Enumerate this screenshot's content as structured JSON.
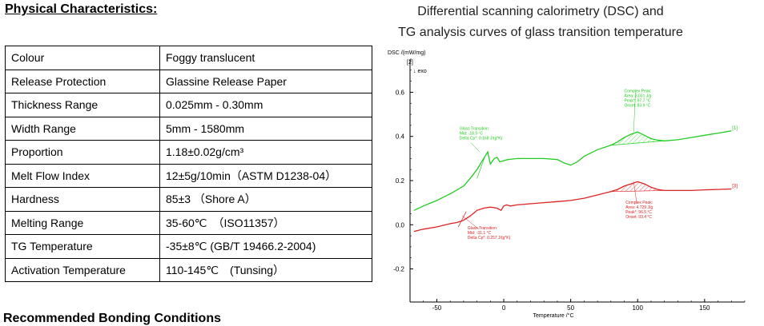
{
  "heading": "Physical Characteristics:",
  "next_heading": "Recommended Bonding Conditions",
  "properties": [
    {
      "name": "Colour",
      "value": "Foggy translucent"
    },
    {
      "name": "Release Protection",
      "value": "Glassine Release Paper"
    },
    {
      "name": "Thickness Range",
      "value": "0.025mm - 0.30mm"
    },
    {
      "name": "Width Range",
      "value": "5mm - 1580mm"
    },
    {
      "name": "Proportion",
      "value": "1.18±0.02g/cm³"
    },
    {
      "name": "Melt Flow Index",
      "value": "12±5g/10min（ASTM D1238-04）"
    },
    {
      "name": "Hardness",
      "value": "85±3 （Shore A）"
    },
    {
      "name": "Melting Range",
      "value": "35-60℃　（ISO11357）"
    },
    {
      "name": "TG Temperature",
      "value": "-35±8℃ (GB/T 19466.2-2004)"
    },
    {
      "name": "Activation Temperature",
      "value": "110-145℃　(Tunsing）"
    }
  ],
  "chart_title_line1": "Differential scanning calorimetry (DSC) and",
  "chart_title_line2": "TG analysis curves of glass transition temperature",
  "chart_data": {
    "type": "line",
    "ylabel": "DSC /(mW/mg)",
    "xlabel": "Temperature /°C",
    "exo_label": "↓ exo",
    "exo_bracket": "[2]",
    "xlim": [
      -70,
      180
    ],
    "ylim": [
      -0.35,
      0.75
    ],
    "xticks": [
      -50,
      0,
      50,
      100,
      150
    ],
    "yticks": [
      -0.2,
      0.0,
      0.2,
      0.4,
      0.6
    ],
    "ytick_labels": [
      "-0.2",
      "0.0",
      "0.2",
      "0.4",
      "0.6"
    ],
    "series": [
      {
        "name": "[1]",
        "color": "#22cc22",
        "x": [
          -67,
          -60,
          -50,
          -40,
          -30,
          -25,
          -20,
          -16,
          -12,
          -10,
          -7,
          -5,
          -3,
          0,
          3,
          10,
          20,
          30,
          40,
          45,
          50,
          55,
          60,
          70,
          80,
          85,
          90,
          95,
          100,
          105,
          110,
          115,
          120,
          130,
          140,
          150,
          160,
          170
        ],
        "y": [
          0.065,
          0.085,
          0.11,
          0.14,
          0.175,
          0.21,
          0.25,
          0.29,
          0.33,
          0.275,
          0.3,
          0.305,
          0.285,
          0.29,
          0.295,
          0.3,
          0.3,
          0.3,
          0.295,
          0.28,
          0.27,
          0.285,
          0.31,
          0.34,
          0.36,
          0.375,
          0.395,
          0.41,
          0.42,
          0.405,
          0.39,
          0.383,
          0.38,
          0.385,
          0.395,
          0.405,
          0.415,
          0.425
        ]
      },
      {
        "name": "[3]",
        "color": "#dd2222",
        "x": [
          -67,
          -60,
          -50,
          -40,
          -35,
          -30,
          -25,
          -22,
          -20,
          -15,
          -10,
          -5,
          -2,
          0,
          2,
          5,
          10,
          20,
          30,
          40,
          50,
          60,
          70,
          80,
          85,
          90,
          95,
          100,
          105,
          110,
          115,
          120,
          130,
          140,
          150,
          160,
          170
        ],
        "y": [
          -0.03,
          -0.02,
          -0.01,
          0.005,
          0.01,
          0.02,
          0.04,
          0.055,
          0.065,
          0.075,
          0.08,
          0.075,
          0.065,
          0.085,
          0.09,
          0.085,
          0.09,
          0.095,
          0.1,
          0.105,
          0.11,
          0.12,
          0.135,
          0.15,
          0.16,
          0.175,
          0.185,
          0.195,
          0.185,
          0.17,
          0.16,
          0.155,
          0.155,
          0.155,
          0.158,
          0.16,
          0.162
        ]
      }
    ],
    "annotations": [
      {
        "color": "#22cc22",
        "lines": [
          "Glass Transition:",
          "Mid:     -18.9 °C",
          "Delta Cp*:  0.168 J/(g*K)"
        ]
      },
      {
        "color": "#22cc22",
        "lines": [
          "Complex Peak:",
          "Area:   3.031 J/g",
          "Peak*:  97.7 °C",
          "Onset:  83.9 °C"
        ]
      },
      {
        "color": "#dd2222",
        "lines": [
          "Glass Transition:",
          "Mid:     -31.1 °C",
          "Delta Cp*:  0.257 J/(g*K)"
        ]
      },
      {
        "color": "#dd2222",
        "lines": [
          "Complex Peak:",
          "Area:   4.729 J/g",
          "Peak*:  96.5 °C",
          "Onset:  93.4 °C"
        ]
      }
    ]
  }
}
